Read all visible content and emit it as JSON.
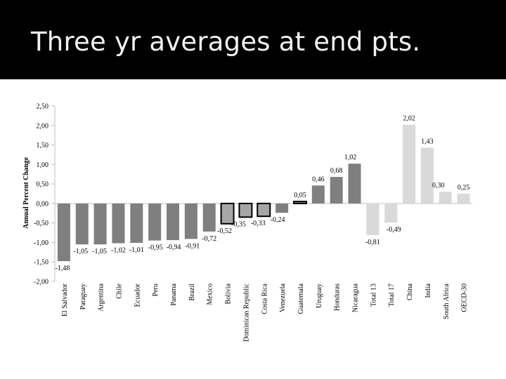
{
  "slide": {
    "title": "Three yr averages at end pts."
  },
  "colors": {
    "title_bar": "#000000",
    "title_text": "#f2f2f2",
    "bar_dark": "#7f7f7f",
    "bar_outlined": "#a6a6a6",
    "bar_light": "#d9d9d9",
    "outline": "#000000"
  },
  "chart_data": {
    "type": "bar",
    "title": "",
    "xlabel": "",
    "ylabel": "Annual Percent Change",
    "ylim": [
      -2.0,
      2.5
    ],
    "yticks": [
      "2,50",
      "2,00",
      "1,50",
      "1,00",
      "0,50",
      "0,00",
      "-0,50",
      "-1,00",
      "-1,50",
      "-2,00"
    ],
    "ytick_values": [
      2.5,
      2.0,
      1.5,
      1.0,
      0.5,
      0.0,
      -0.5,
      -1.0,
      -1.5,
      -2.0
    ],
    "grid": false,
    "legend": "none",
    "categories": [
      "El Salvador",
      "Paraguay",
      "Argentina",
      "Chile",
      "Ecuador",
      "Peru",
      "Panama",
      "Brazil",
      "Mexico",
      "Bolivia",
      "Dominican Republic",
      "Costa Rica",
      "Venezuela",
      "Guatemala",
      "Uruguay",
      "Honduras",
      "Nicaragua",
      "Total 13",
      "Total 17",
      "China",
      "India",
      "South Africa",
      "OECD-30"
    ],
    "values": [
      -1.48,
      -1.05,
      -1.05,
      -1.02,
      -1.01,
      -0.95,
      -0.94,
      -0.91,
      -0.72,
      -0.52,
      -0.35,
      -0.33,
      -0.24,
      0.05,
      0.46,
      0.68,
      1.02,
      -0.81,
      -0.49,
      2.02,
      1.43,
      0.3,
      0.25
    ],
    "value_labels": [
      "-1,48",
      "-1,05",
      "-1,05",
      "-1,02",
      "-1,01",
      "-0,95",
      "-0,94",
      "-0,91",
      "-0,72",
      "-0,52",
      "-0,35",
      "-0,33",
      "-0,24",
      "0,05",
      "0,46",
      "0,68",
      "1,02",
      "-0,81",
      "-0,49",
      "2,02",
      "1,43",
      "0,30",
      "0,25"
    ],
    "bar_styles": [
      "dark",
      "dark",
      "dark",
      "dark",
      "dark",
      "dark",
      "dark",
      "dark",
      "dark",
      "outlined",
      "outlined",
      "outlined",
      "dark",
      "outlined",
      "dark",
      "dark",
      "dark",
      "light",
      "light",
      "light",
      "light",
      "light",
      "light"
    ]
  }
}
